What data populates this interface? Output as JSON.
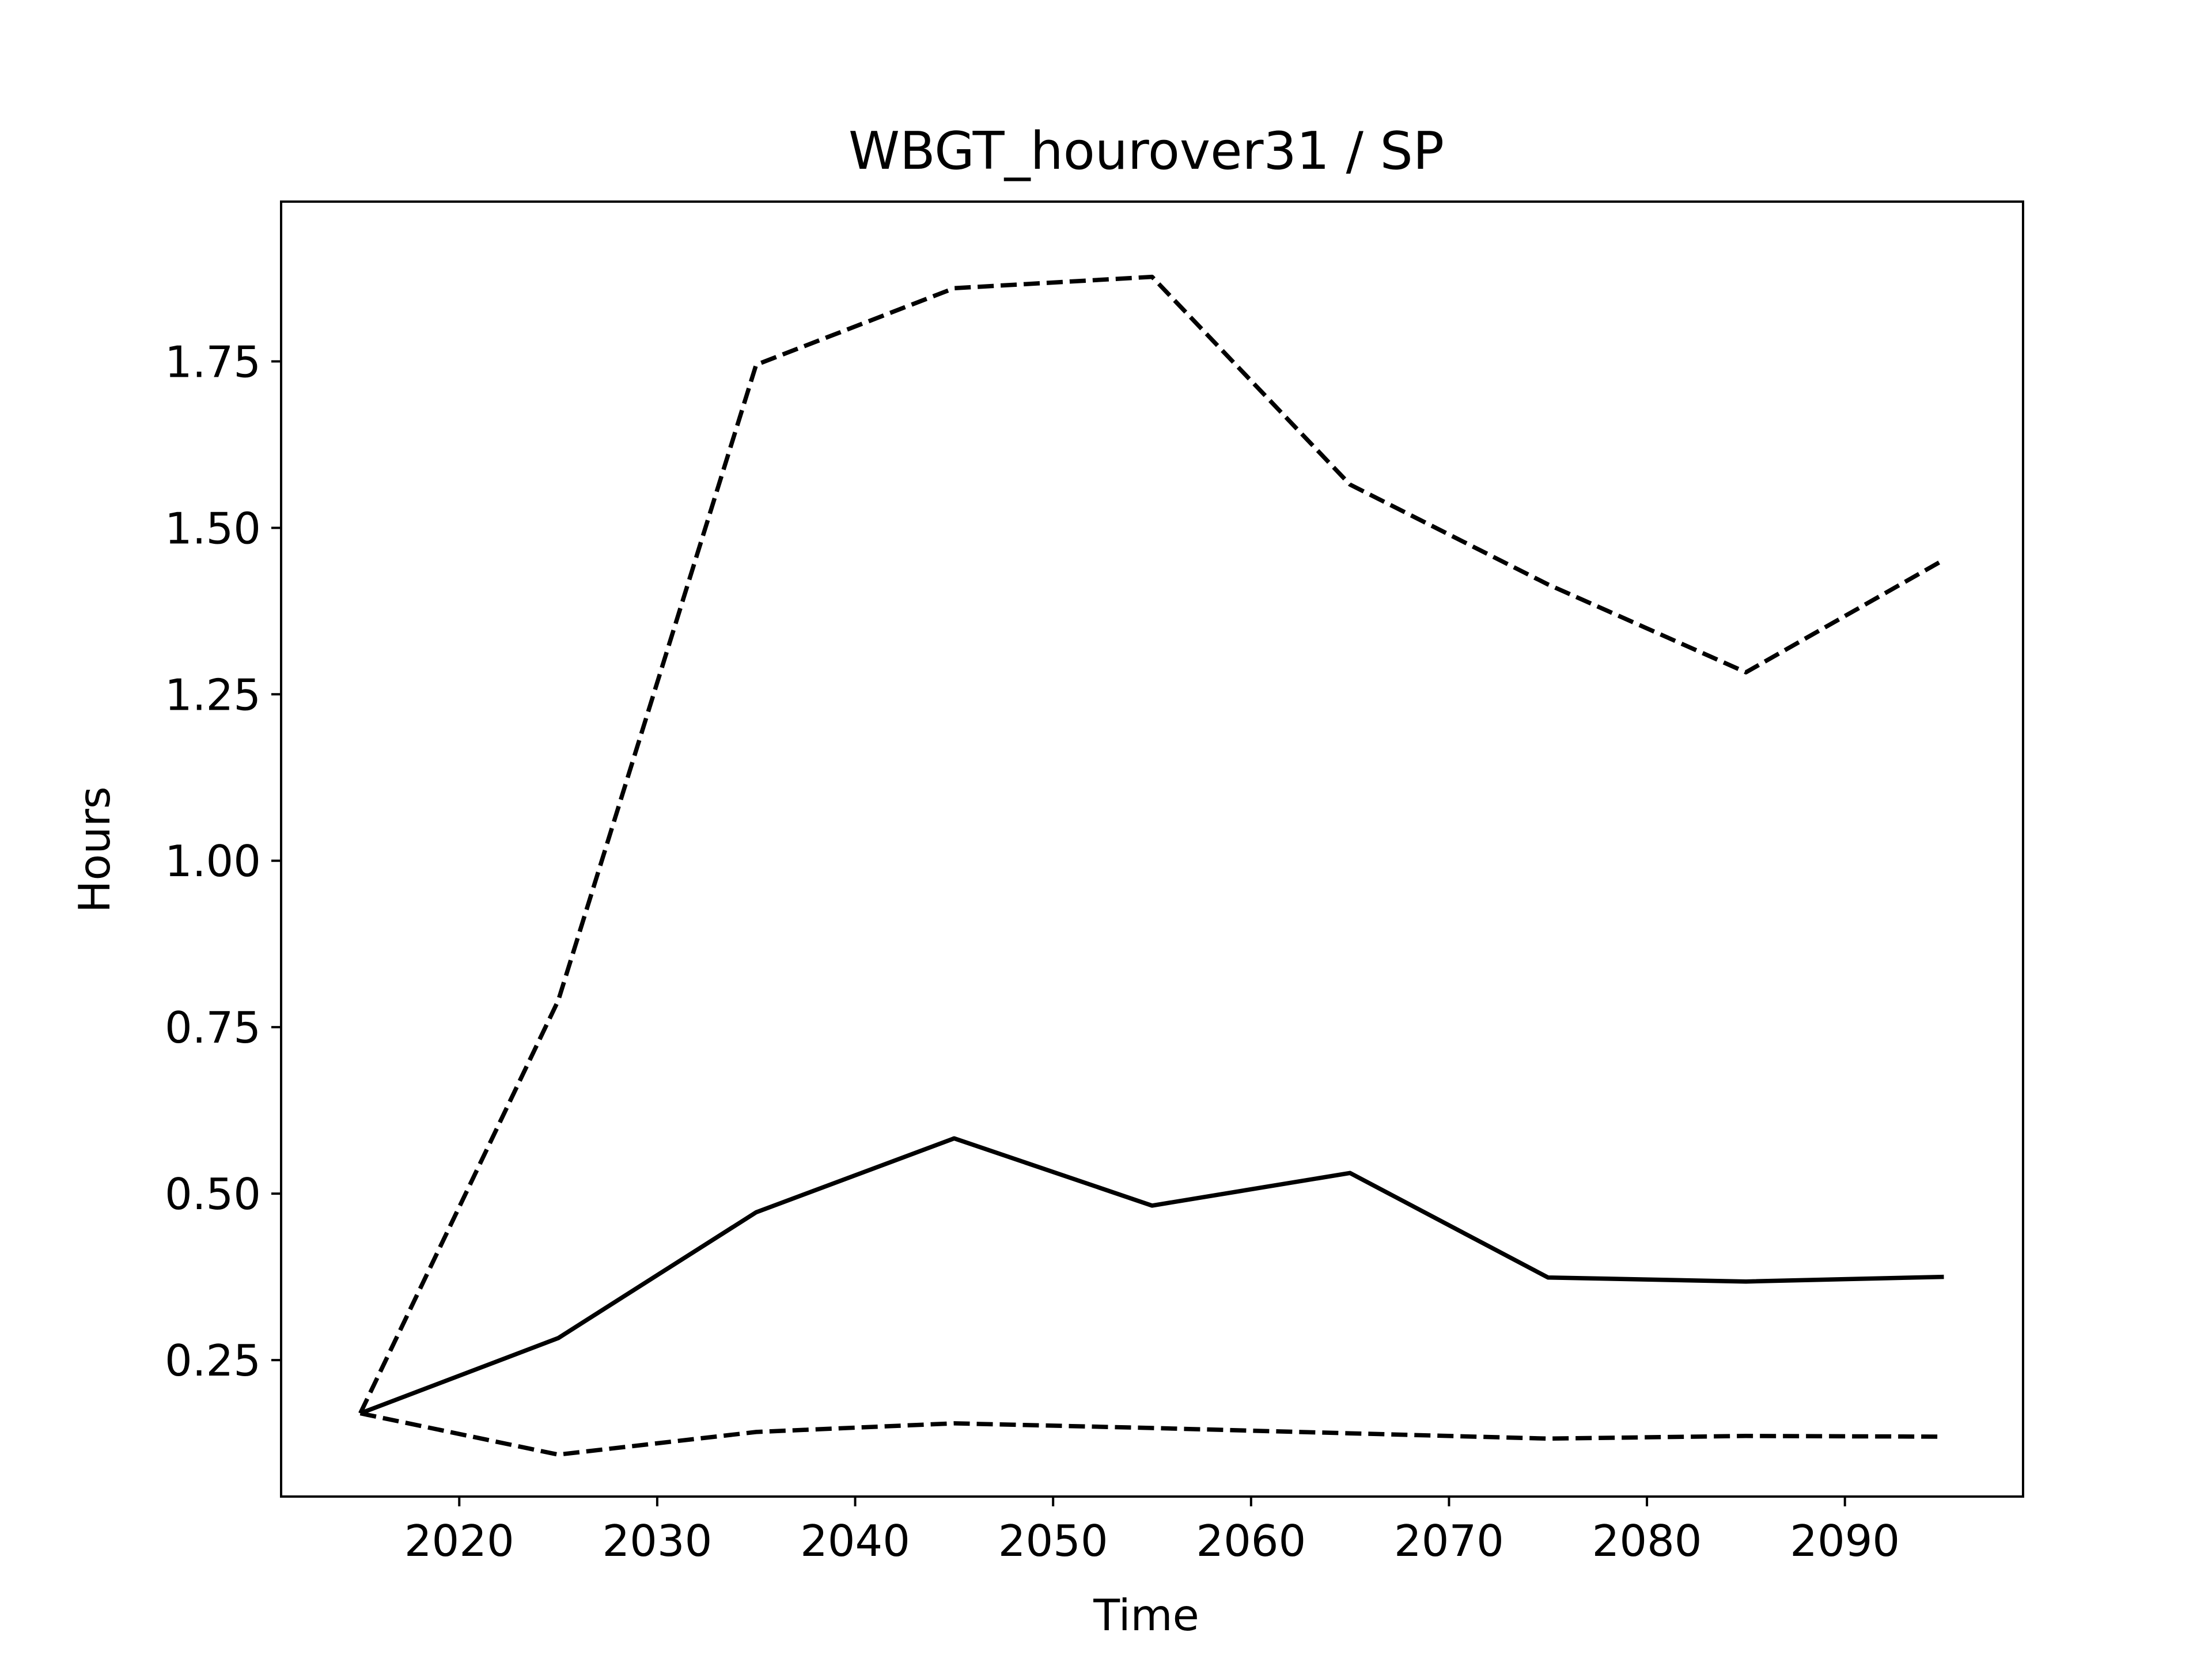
{
  "chart_data": {
    "type": "line",
    "title": "WBGT_hourover31 / SP",
    "xlabel": "Time",
    "ylabel": "Hours",
    "xlim": [
      2011,
      2099
    ],
    "ylim": [
      0.045,
      1.99
    ],
    "x_ticks": [
      2020,
      2030,
      2040,
      2050,
      2060,
      2070,
      2080,
      2090
    ],
    "x_tick_labels": [
      "2020",
      "2030",
      "2040",
      "2050",
      "2060",
      "2070",
      "2080",
      "2090"
    ],
    "y_ticks": [
      0.25,
      0.5,
      0.75,
      1.0,
      1.25,
      1.5,
      1.75
    ],
    "y_tick_labels": [
      "0.25",
      "0.50",
      "0.75",
      "1.00",
      "1.25",
      "1.50",
      "1.75"
    ],
    "grid": false,
    "x": [
      2015,
      2025,
      2035,
      2045,
      2055,
      2065,
      2075,
      2085,
      2095
    ],
    "series": [
      {
        "style": "solid",
        "color": "#000000",
        "values": [
          0.17,
          0.283,
          0.472,
          0.583,
          0.482,
          0.531,
          0.374,
          0.368,
          0.375
        ]
      },
      {
        "style": "dashed",
        "color": "#000000",
        "values": [
          0.17,
          0.79,
          1.745,
          1.86,
          1.877,
          1.565,
          1.415,
          1.283,
          1.452
        ]
      },
      {
        "style": "dashed",
        "color": "#000000",
        "values": [
          0.17,
          0.108,
          0.142,
          0.155,
          0.148,
          0.14,
          0.132,
          0.136,
          0.135
        ]
      }
    ]
  }
}
